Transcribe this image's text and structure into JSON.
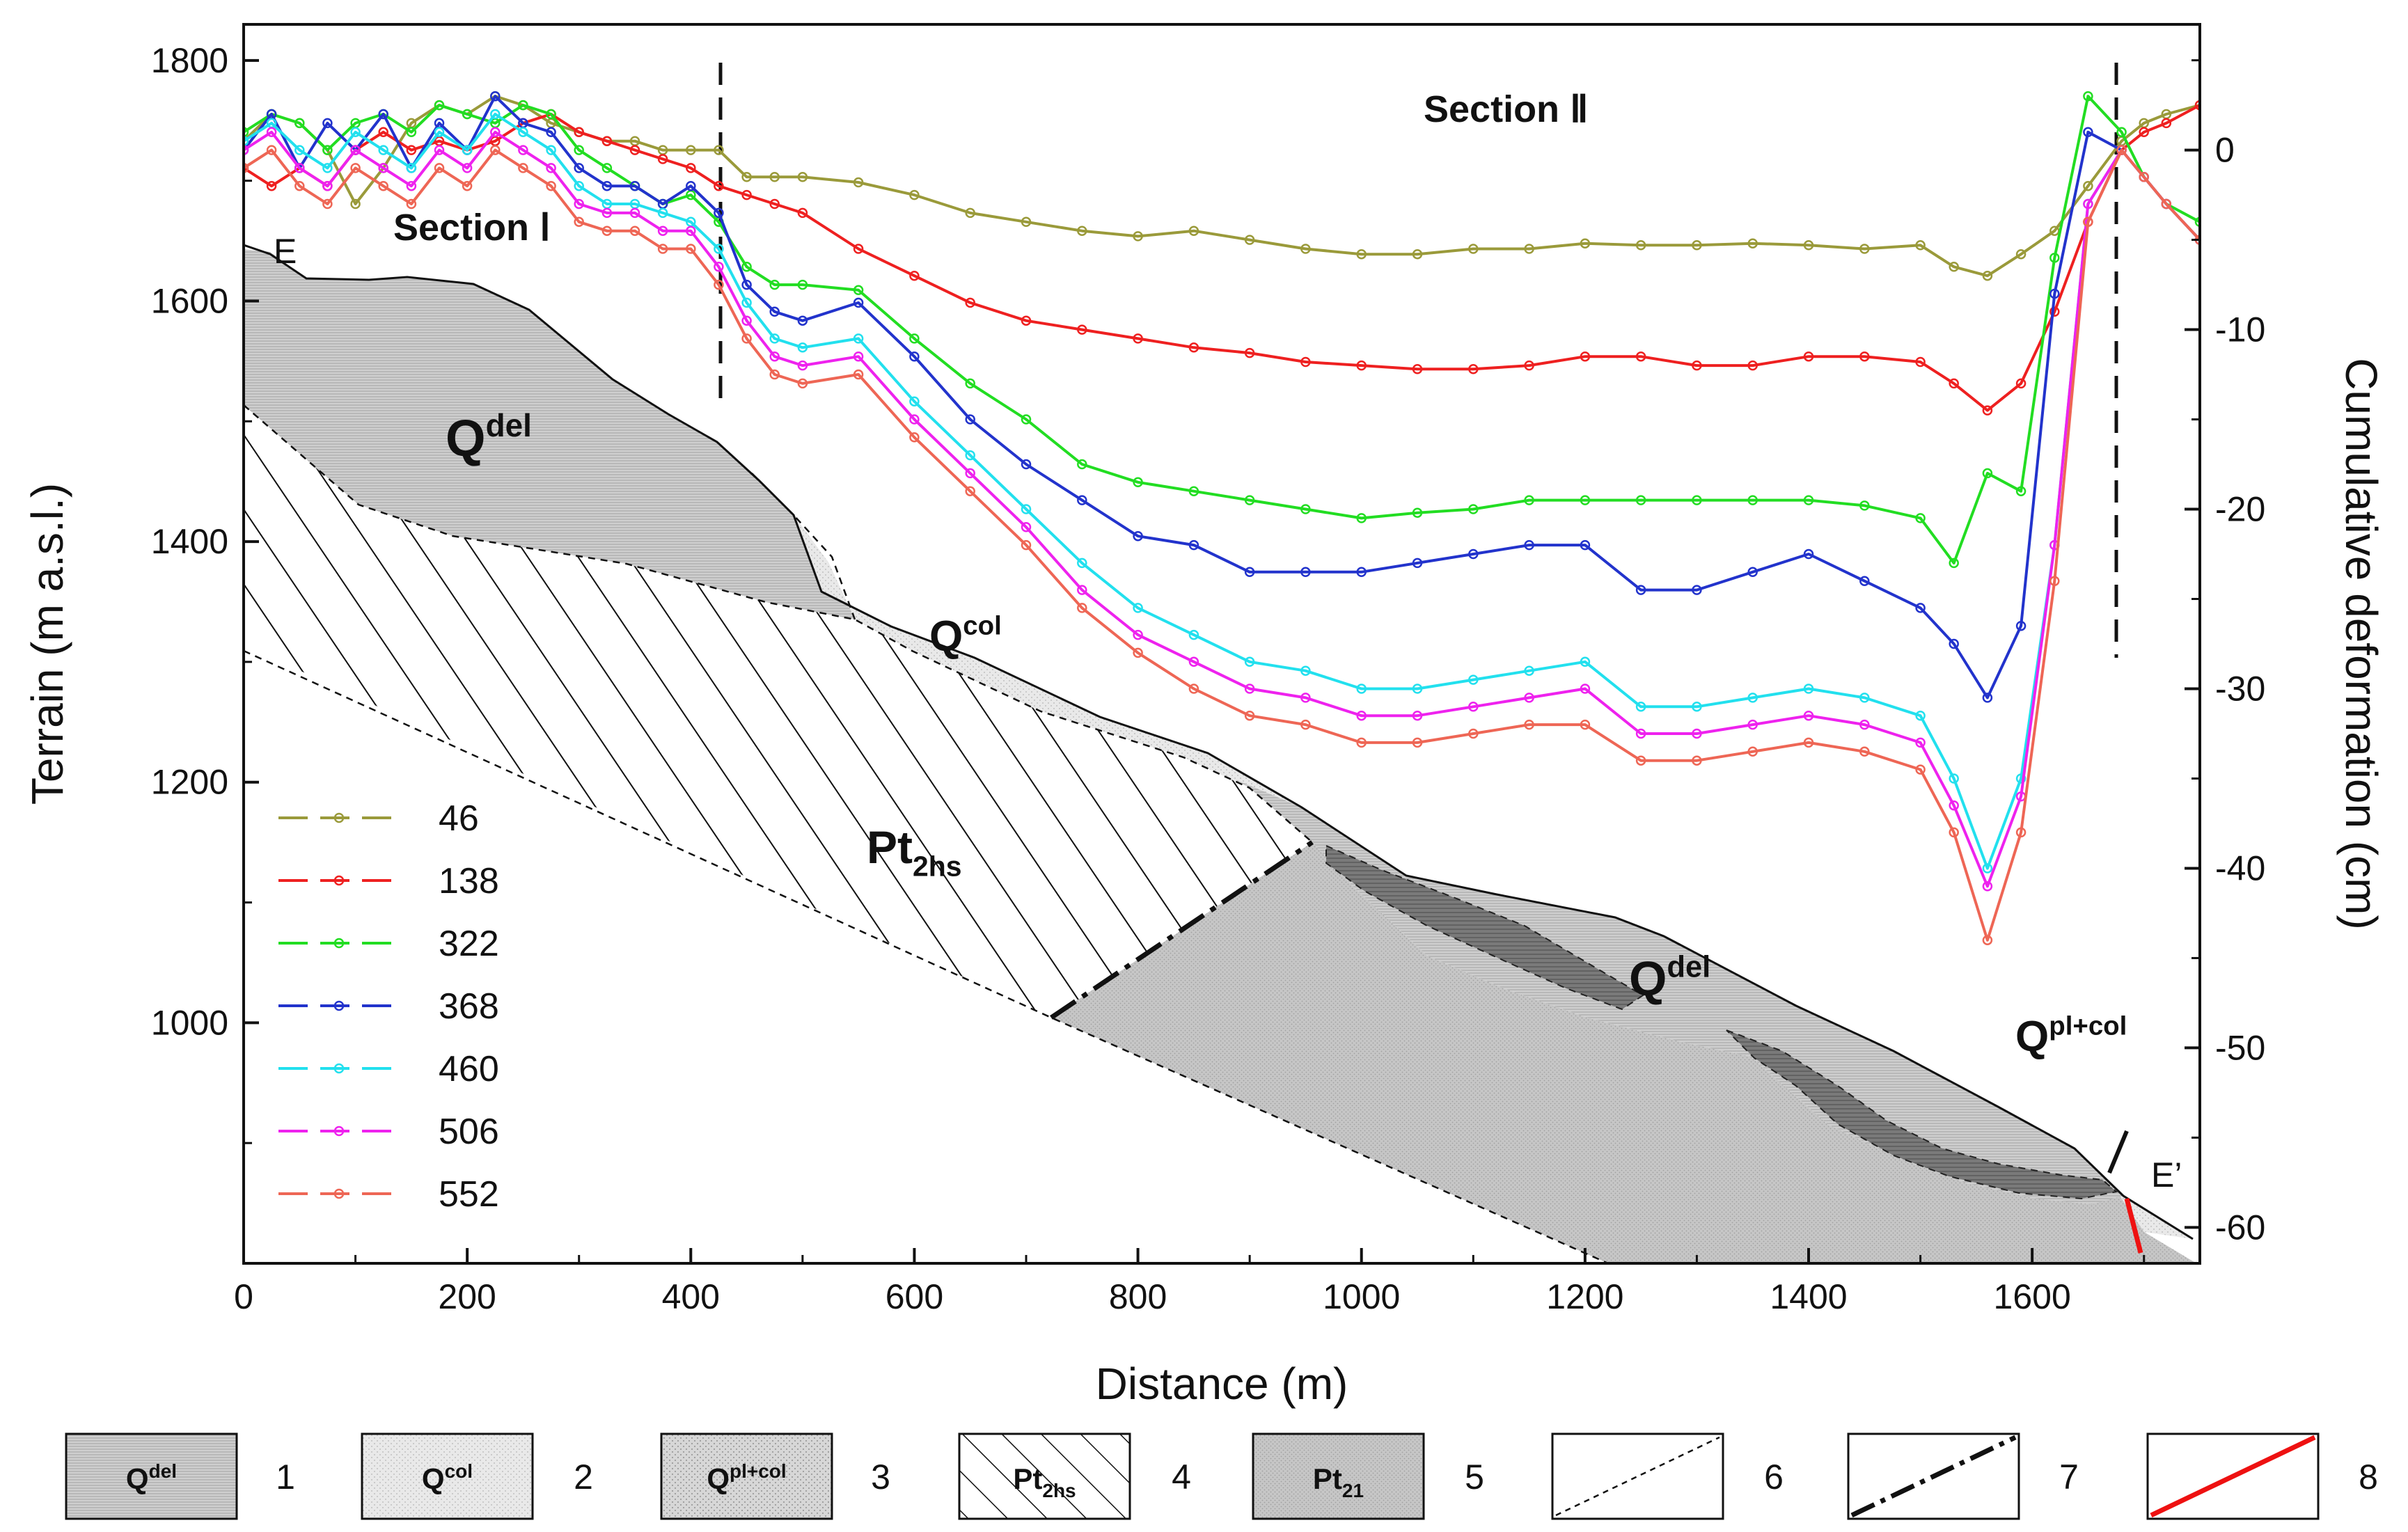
{
  "chart_data": {
    "type": "line",
    "title": "",
    "xlabel": "Distance  (m)",
    "ylabel_left": "Terrain (m a.s.l.)",
    "ylabel_right": "Cumulative deformation (cm)",
    "xlim": [
      0,
      1750
    ],
    "ylim_left": [
      800,
      1830
    ],
    "ylim_right": [
      -62,
      7
    ],
    "x_ticks": [
      0,
      200,
      400,
      600,
      800,
      1000,
      1200,
      1400,
      1600
    ],
    "y_left_ticks": [
      1000,
      1200,
      1400,
      1600,
      1800
    ],
    "y_right_ticks": [
      0,
      -10,
      -20,
      -30,
      -40,
      -50,
      -60
    ],
    "grid": false,
    "legend_position": "lower-left",
    "x": [
      0,
      25,
      50,
      75,
      100,
      125,
      150,
      175,
      200,
      225,
      250,
      275,
      300,
      325,
      350,
      375,
      400,
      425,
      450,
      475,
      500,
      550,
      600,
      650,
      700,
      750,
      800,
      850,
      900,
      950,
      1000,
      1050,
      1100,
      1150,
      1200,
      1250,
      1300,
      1350,
      1400,
      1450,
      1500,
      1530,
      1560,
      1590,
      1620,
      1650,
      1680,
      1700,
      1720,
      1750
    ],
    "series": [
      {
        "name": "46",
        "color": "#9a9a3a",
        "values": [
          0.5,
          2,
          1.5,
          0,
          -3,
          -1,
          1.5,
          2.5,
          2,
          3,
          2.5,
          1.5,
          1,
          0.5,
          0.5,
          0,
          0,
          0,
          -1.5,
          -1.5,
          -1.5,
          -1.8,
          -2.5,
          -3.5,
          -4,
          -4.5,
          -4.8,
          -4.5,
          -5,
          -5.5,
          -5.8,
          -5.8,
          -5.5,
          -5.5,
          -5.2,
          -5.3,
          -5.3,
          -5.2,
          -5.3,
          -5.5,
          -5.3,
          -6.5,
          -7,
          -5.8,
          -4.5,
          -2,
          0.5,
          1.5,
          2,
          2.5
        ]
      },
      {
        "name": "138",
        "color": "#ee2020",
        "values": [
          -1,
          -2,
          -1,
          -2,
          0,
          1,
          0,
          0.5,
          0,
          0.5,
          1.5,
          2,
          1,
          0.5,
          0,
          -0.5,
          -1,
          -2,
          -2.5,
          -3,
          -3.5,
          -5.5,
          -7,
          -8.5,
          -9.5,
          -10,
          -10.5,
          -11,
          -11.3,
          -11.8,
          -12,
          -12.2,
          -12.2,
          -12,
          -11.5,
          -11.5,
          -12,
          -12,
          -11.5,
          -11.5,
          -11.8,
          -13,
          -14.5,
          -13,
          -9,
          -4,
          0,
          1,
          1.5,
          2.5
        ]
      },
      {
        "name": "322",
        "color": "#22dd22",
        "values": [
          1,
          2,
          1.5,
          0,
          1.5,
          2,
          1,
          2.5,
          2,
          1.5,
          2.5,
          2,
          0,
          -1,
          -2,
          -3,
          -2.5,
          -4,
          -6.5,
          -7.5,
          -7.5,
          -7.8,
          -10.5,
          -13,
          -15,
          -17.5,
          -18.5,
          -19,
          -19.5,
          -20,
          -20.5,
          -20.2,
          -20,
          -19.5,
          -19.5,
          -19.5,
          -19.5,
          -19.5,
          -19.5,
          -19.8,
          -20.5,
          -23,
          -18,
          -19,
          -6,
          3,
          1,
          -1.5,
          -3,
          -4
        ]
      },
      {
        "name": "368",
        "color": "#2233cc",
        "values": [
          0,
          2,
          -1,
          1.5,
          0,
          2,
          -1,
          1.5,
          0,
          3,
          1.5,
          1,
          -1,
          -2,
          -2,
          -3,
          -2,
          -3.5,
          -7.5,
          -9,
          -9.5,
          -8.5,
          -11.5,
          -15,
          -17.5,
          -19.5,
          -21.5,
          -22,
          -23.5,
          -23.5,
          -23.5,
          -23,
          -22.5,
          -22,
          -22,
          -24.5,
          -24.5,
          -23.5,
          -22.5,
          -24,
          -25.5,
          -27.5,
          -30.5,
          -26.5,
          -8,
          1,
          0,
          -1.5,
          -3,
          -5
        ]
      },
      {
        "name": "460",
        "color": "#22e0ee",
        "values": [
          0.5,
          1.5,
          0,
          -1,
          1,
          0,
          -1,
          1,
          0,
          2,
          1,
          0,
          -2,
          -3,
          -3,
          -3.5,
          -4,
          -5.5,
          -8.5,
          -10.5,
          -11,
          -10.5,
          -14,
          -17,
          -20,
          -23,
          -25.5,
          -27,
          -28.5,
          -29,
          -30,
          -30,
          -29.5,
          -29,
          -28.5,
          -31,
          -31,
          -30.5,
          -30,
          -30.5,
          -31.5,
          -35,
          -40,
          -35,
          -22,
          -3,
          0,
          -1.5,
          -3,
          -5
        ]
      },
      {
        "name": "506",
        "color": "#ee22ee",
        "values": [
          0,
          1,
          -1,
          -2,
          0,
          -1,
          -2,
          0,
          -1,
          1,
          0,
          -1,
          -3,
          -3.5,
          -3.5,
          -4.5,
          -4.5,
          -6.5,
          -9.5,
          -11.5,
          -12,
          -11.5,
          -15,
          -18,
          -21,
          -24.5,
          -27,
          -28.5,
          -30,
          -30.5,
          -31.5,
          -31.5,
          -31,
          -30.5,
          -30,
          -32.5,
          -32.5,
          -32,
          -31.5,
          -32,
          -33,
          -36.5,
          -41,
          -36,
          -22,
          -3,
          0,
          -1.5,
          -3,
          -5
        ]
      },
      {
        "name": "552",
        "color": "#ee6655",
        "values": [
          -1,
          0,
          -2,
          -3,
          -1,
          -2,
          -3,
          -1,
          -2,
          0,
          -1,
          -2,
          -4,
          -4.5,
          -4.5,
          -5.5,
          -5.5,
          -7.5,
          -10.5,
          -12.5,
          -13,
          -12.5,
          -16,
          -19,
          -22,
          -25.5,
          -28,
          -30,
          -31.5,
          -32,
          -33,
          -33,
          -32.5,
          -32,
          -32,
          -34,
          -34,
          -33.5,
          -33,
          -33.5,
          -34.5,
          -38,
          -44,
          -38,
          -24,
          -4,
          0,
          -1.5,
          -3,
          -5
        ]
      }
    ],
    "annotations": {
      "section_1": "Section  Ⅰ",
      "section_2": "Section Ⅱ",
      "point_start": "E",
      "point_end": "E’",
      "units": [
        {
          "base": "Q",
          "sup": "del"
        },
        {
          "base": "Q",
          "sup": "col"
        },
        {
          "base": "Pt",
          "sub": "2hs"
        },
        {
          "base": "Q",
          "sup": "del"
        },
        {
          "base": "Q",
          "sup": "pl+col"
        }
      ],
      "section_divider_x": [
        430,
        1675
      ]
    }
  },
  "key": {
    "items": [
      {
        "num": "1",
        "base": "Q",
        "sup": "del",
        "sub": ""
      },
      {
        "num": "2",
        "base": "Q",
        "sup": "col",
        "sub": ""
      },
      {
        "num": "3",
        "base": "Q",
        "sup": "pl+col",
        "sub": ""
      },
      {
        "num": "4",
        "base": "Pt",
        "sup": "",
        "sub": "2hs"
      },
      {
        "num": "5",
        "base": "Pt",
        "sup": "",
        "sub": "21"
      },
      {
        "num": "6",
        "base": "",
        "sup": "",
        "sub": ""
      },
      {
        "num": "7",
        "base": "",
        "sup": "",
        "sub": ""
      },
      {
        "num": "8",
        "base": "",
        "sup": "",
        "sub": ""
      }
    ]
  }
}
